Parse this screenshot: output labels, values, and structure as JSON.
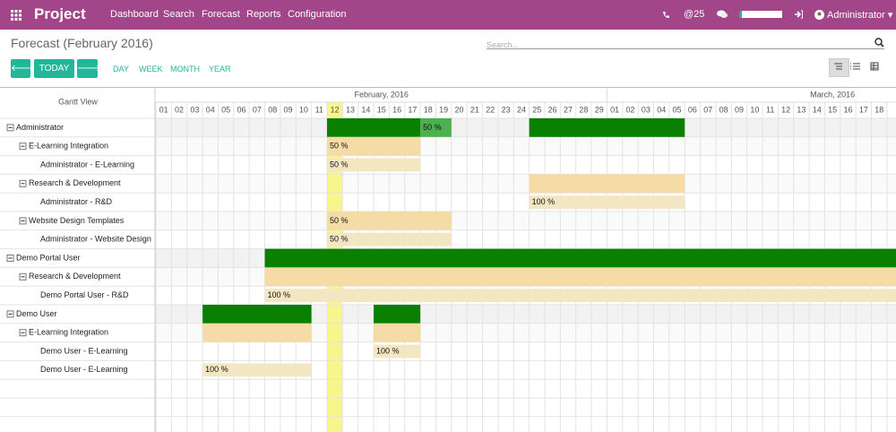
{
  "navbar": {
    "brand": "Project",
    "menu": [
      "Dashboard",
      "Search",
      "Forecast",
      "Reports",
      "Configuration"
    ],
    "messages": "@25",
    "user": "Administrator"
  },
  "header": {
    "title": "Forecast (February 2016)",
    "search_placeholder": "Search...",
    "today": "TODAY",
    "scales": [
      "DAY",
      "WEEK",
      "MONTH",
      "YEAR"
    ]
  },
  "gantt": {
    "label": "Gantt View",
    "months": [
      {
        "label": "February, 2016",
        "columns": 29
      },
      {
        "label": "March, 2016",
        "columns": 18
      }
    ],
    "days": [
      "01",
      "02",
      "03",
      "04",
      "05",
      "06",
      "07",
      "08",
      "09",
      "10",
      "11",
      "12",
      "13",
      "14",
      "15",
      "16",
      "17",
      "18",
      "19",
      "20",
      "21",
      "22",
      "23",
      "24",
      "25",
      "26",
      "27",
      "28",
      "29",
      "01",
      "02",
      "03",
      "04",
      "05",
      "06",
      "07",
      "08",
      "09",
      "10",
      "11",
      "12",
      "13",
      "14",
      "15",
      "16",
      "17",
      "18"
    ],
    "today_column": 11,
    "rows": [
      {
        "label": "Administrator",
        "level": 0,
        "bars": [
          {
            "from": 11,
            "to": 16,
            "kind": "group"
          },
          {
            "from": 17,
            "to": 18,
            "kind": "partial",
            "label": "50 %"
          },
          {
            "from": 24,
            "to": 33,
            "kind": "group"
          }
        ]
      },
      {
        "label": "E-Learning Integration",
        "level": 1,
        "bars": [
          {
            "from": 11,
            "to": 16,
            "kind": "sub",
            "label": "50 %"
          }
        ]
      },
      {
        "label": "Administrator - E-Learning",
        "level": 2,
        "bars": [
          {
            "from": 11,
            "to": 16,
            "kind": "task",
            "label": "50 %"
          }
        ]
      },
      {
        "label": "Research & Development",
        "level": 1,
        "bars": [
          {
            "from": 24,
            "to": 33,
            "kind": "sub"
          }
        ]
      },
      {
        "label": "Administrator - R&D",
        "level": 2,
        "bars": [
          {
            "from": 24,
            "to": 33,
            "kind": "task",
            "label": "100 %"
          }
        ]
      },
      {
        "label": "Website Design Templates",
        "level": 1,
        "bars": [
          {
            "from": 11,
            "to": 18,
            "kind": "sub",
            "label": "50 %"
          }
        ]
      },
      {
        "label": "Administrator - Website Design",
        "level": 2,
        "bars": [
          {
            "from": 11,
            "to": 18,
            "kind": "task",
            "label": "50 %"
          }
        ]
      },
      {
        "label": "Demo Portal User",
        "level": 0,
        "bars": [
          {
            "from": 7,
            "to": 46,
            "kind": "group"
          }
        ]
      },
      {
        "label": "Research & Development",
        "level": 1,
        "bars": [
          {
            "from": 7,
            "to": 46,
            "kind": "sub"
          }
        ]
      },
      {
        "label": "Demo Portal User - R&D",
        "level": 2,
        "bars": [
          {
            "from": 7,
            "to": 46,
            "kind": "task",
            "label": "100 %"
          }
        ]
      },
      {
        "label": "Demo User",
        "level": 0,
        "bars": [
          {
            "from": 3,
            "to": 9,
            "kind": "group"
          },
          {
            "from": 14,
            "to": 16,
            "kind": "group"
          }
        ]
      },
      {
        "label": "E-Learning Integration",
        "level": 1,
        "bars": [
          {
            "from": 3,
            "to": 9,
            "kind": "sub"
          },
          {
            "from": 14,
            "to": 16,
            "kind": "sub"
          }
        ]
      },
      {
        "label": "Demo User - E-Learning",
        "level": 2,
        "bars": [
          {
            "from": 14,
            "to": 16,
            "kind": "task",
            "label": "100 %"
          }
        ]
      },
      {
        "label": "Demo User - E-Learning",
        "level": 2,
        "bars": [
          {
            "from": 3,
            "to": 9,
            "kind": "task",
            "label": "100 %"
          }
        ]
      }
    ]
  }
}
